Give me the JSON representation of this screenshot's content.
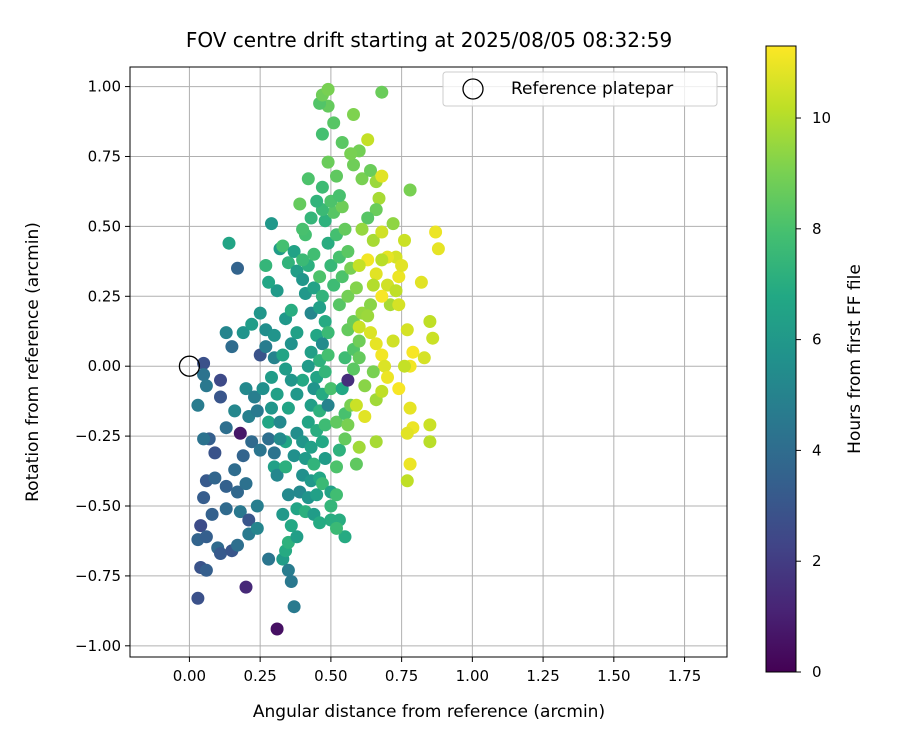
{
  "chart_data": {
    "type": "scatter",
    "title": "FOV centre drift starting at 2025/08/05 08:32:59",
    "xlabel": "Angular distance from reference (arcmin)",
    "ylabel": "Rotation from reference (arcmin)",
    "xlim": [
      -0.21,
      1.9
    ],
    "ylim": [
      -1.04,
      1.07
    ],
    "x_ticks": [
      0.0,
      0.25,
      0.5,
      0.75,
      1.0,
      1.25,
      1.5,
      1.75
    ],
    "x_tick_labels": [
      "0.00",
      "0.25",
      "0.50",
      "0.75",
      "1.00",
      "1.25",
      "1.50",
      "1.75"
    ],
    "y_ticks": [
      -1.0,
      -0.75,
      -0.5,
      -0.25,
      0.0,
      0.25,
      0.5,
      0.75,
      1.0
    ],
    "y_tick_labels": [
      "−1.00",
      "−0.75",
      "−0.50",
      "−0.25",
      "0.00",
      "0.25",
      "0.50",
      "0.75",
      "1.00"
    ],
    "grid": true,
    "legend": {
      "placement": "top-right",
      "entries": [
        "Reference platepar"
      ]
    },
    "reference": {
      "x": 0.0,
      "y": 0.0,
      "marker": "open-circle"
    },
    "colorbar": {
      "label": "Hours from first FF file",
      "colormap": "viridis",
      "range": [
        0,
        11.3
      ],
      "ticks": [
        0,
        2,
        4,
        6,
        8,
        10
      ],
      "tick_labels": [
        "0",
        "2",
        "4",
        "6",
        "8",
        "10"
      ]
    },
    "points": [
      [
        0.05,
        0.01,
        2.8
      ],
      [
        0.05,
        -0.03,
        4.3
      ],
      [
        0.06,
        -0.07,
        4.5
      ],
      [
        0.11,
        -0.05,
        2.5
      ],
      [
        0.11,
        -0.11,
        3.0
      ],
      [
        0.03,
        -0.14,
        4.7
      ],
      [
        0.16,
        -0.16,
        5.2
      ],
      [
        0.13,
        -0.22,
        4.1
      ],
      [
        0.18,
        -0.24,
        0.7
      ],
      [
        0.21,
        -0.18,
        4.9
      ],
      [
        0.24,
        -0.16,
        4.6
      ],
      [
        0.22,
        -0.27,
        3.9
      ],
      [
        0.28,
        -0.26,
        4.1
      ],
      [
        0.25,
        -0.3,
        4.4
      ],
      [
        0.19,
        -0.32,
        3.6
      ],
      [
        0.16,
        -0.37,
        4.0
      ],
      [
        0.09,
        -0.31,
        2.9
      ],
      [
        0.07,
        -0.26,
        3.4
      ],
      [
        0.05,
        -0.26,
        4.3
      ],
      [
        0.06,
        -0.41,
        3.2
      ],
      [
        0.09,
        -0.4,
        3.7
      ],
      [
        0.13,
        -0.43,
        3.5
      ],
      [
        0.17,
        -0.45,
        3.8
      ],
      [
        0.2,
        -0.42,
        4.2
      ],
      [
        0.05,
        -0.47,
        3.3
      ],
      [
        0.08,
        -0.53,
        3.5
      ],
      [
        0.13,
        -0.51,
        3.9
      ],
      [
        0.18,
        -0.52,
        4.5
      ],
      [
        0.21,
        -0.55,
        3.0
      ],
      [
        0.24,
        -0.5,
        4.8
      ],
      [
        0.04,
        -0.57,
        2.6
      ],
      [
        0.03,
        -0.62,
        3.6
      ],
      [
        0.06,
        -0.61,
        3.4
      ],
      [
        0.1,
        -0.65,
        3.9
      ],
      [
        0.11,
        -0.67,
        3.2
      ],
      [
        0.15,
        -0.66,
        3.0
      ],
      [
        0.17,
        -0.64,
        4.1
      ],
      [
        0.21,
        -0.6,
        4.6
      ],
      [
        0.24,
        -0.58,
        5.1
      ],
      [
        0.04,
        -0.72,
        2.9
      ],
      [
        0.06,
        -0.73,
        3.4
      ],
      [
        0.03,
        -0.83,
        2.8
      ],
      [
        0.2,
        -0.79,
        1.3
      ],
      [
        0.28,
        -0.69,
        4.4
      ],
      [
        0.33,
        -0.69,
        6.2
      ],
      [
        0.34,
        -0.66,
        6.9
      ],
      [
        0.35,
        -0.73,
        4.7
      ],
      [
        0.36,
        -0.77,
        4.5
      ],
      [
        0.31,
        -0.94,
        0.5
      ],
      [
        0.37,
        -0.86,
        4.6
      ],
      [
        0.14,
        0.44,
        6.6
      ],
      [
        0.17,
        0.35,
        3.6
      ],
      [
        0.13,
        0.12,
        5.1
      ],
      [
        0.15,
        0.07,
        4.0
      ],
      [
        0.19,
        0.12,
        5.8
      ],
      [
        0.22,
        0.15,
        6.2
      ],
      [
        0.25,
        0.19,
        5.9
      ],
      [
        0.27,
        0.13,
        5.5
      ],
      [
        0.3,
        0.11,
        5.8
      ],
      [
        0.25,
        0.04,
        2.9
      ],
      [
        0.27,
        0.07,
        4.7
      ],
      [
        0.3,
        0.03,
        5.0
      ],
      [
        0.2,
        -0.08,
        5.3
      ],
      [
        0.23,
        -0.11,
        4.8
      ],
      [
        0.26,
        -0.08,
        5.6
      ],
      [
        0.29,
        -0.04,
        6.2
      ],
      [
        0.29,
        -0.15,
        5.9
      ],
      [
        0.31,
        -0.1,
        6.4
      ],
      [
        0.28,
        -0.2,
        6.7
      ],
      [
        0.32,
        -0.2,
        5.3
      ],
      [
        0.3,
        -0.36,
        6.4
      ],
      [
        0.31,
        -0.39,
        5.2
      ],
      [
        0.34,
        -0.36,
        7.1
      ],
      [
        0.3,
        -0.31,
        4.3
      ],
      [
        0.34,
        -0.27,
        6.7
      ],
      [
        0.32,
        -0.26,
        5.4
      ],
      [
        0.37,
        -0.32,
        5.6
      ],
      [
        0.38,
        -0.24,
        5.5
      ],
      [
        0.35,
        -0.15,
        6.6
      ],
      [
        0.38,
        -0.1,
        6.0
      ],
      [
        0.4,
        -0.05,
        6.8
      ],
      [
        0.36,
        -0.05,
        5.9
      ],
      [
        0.34,
        -0.01,
        6.2
      ],
      [
        0.33,
        0.04,
        6.6
      ],
      [
        0.36,
        0.08,
        5.7
      ],
      [
        0.38,
        0.12,
        6.4
      ],
      [
        0.34,
        0.17,
        6.0
      ],
      [
        0.36,
        0.2,
        7.0
      ],
      [
        0.31,
        0.27,
        6.1
      ],
      [
        0.28,
        0.3,
        6.7
      ],
      [
        0.29,
        0.51,
        6.0
      ],
      [
        0.32,
        0.42,
        6.2
      ],
      [
        0.27,
        0.36,
        7.4
      ],
      [
        0.33,
        0.43,
        7.9
      ],
      [
        0.35,
        0.37,
        7.3
      ],
      [
        0.37,
        0.41,
        6.5
      ],
      [
        0.38,
        0.34,
        6.3
      ],
      [
        0.4,
        0.31,
        5.9
      ],
      [
        0.42,
        0.36,
        7.1
      ],
      [
        0.44,
        0.4,
        7.8
      ],
      [
        0.41,
        0.26,
        6.0
      ],
      [
        0.44,
        0.28,
        6.5
      ],
      [
        0.46,
        0.32,
        8.1
      ],
      [
        0.47,
        0.25,
        7.3
      ],
      [
        0.43,
        0.19,
        5.2
      ],
      [
        0.46,
        0.21,
        6.4
      ],
      [
        0.48,
        0.16,
        6.9
      ],
      [
        0.45,
        0.11,
        6.7
      ],
      [
        0.49,
        0.12,
        7.6
      ],
      [
        0.47,
        0.08,
        5.4
      ],
      [
        0.43,
        0.05,
        6.3
      ],
      [
        0.46,
        0.02,
        7.2
      ],
      [
        0.49,
        0.04,
        7.9
      ],
      [
        0.42,
        0.0,
        6.1
      ],
      [
        0.45,
        -0.04,
        6.6
      ],
      [
        0.48,
        -0.02,
        7.4
      ],
      [
        0.44,
        -0.08,
        5.8
      ],
      [
        0.47,
        -0.1,
        6.9
      ],
      [
        0.5,
        -0.08,
        8.0
      ],
      [
        0.43,
        -0.14,
        6.3
      ],
      [
        0.46,
        -0.16,
        7.2
      ],
      [
        0.49,
        -0.14,
        5.0
      ],
      [
        0.42,
        -0.2,
        6.6
      ],
      [
        0.45,
        -0.23,
        7.0
      ],
      [
        0.48,
        -0.21,
        7.7
      ],
      [
        0.4,
        -0.27,
        5.9
      ],
      [
        0.43,
        -0.29,
        6.4
      ],
      [
        0.47,
        -0.27,
        6.8
      ],
      [
        0.41,
        -0.33,
        6.1
      ],
      [
        0.44,
        -0.35,
        7.3
      ],
      [
        0.48,
        -0.33,
        6.2
      ],
      [
        0.4,
        -0.39,
        5.6
      ],
      [
        0.43,
        -0.41,
        6.0
      ],
      [
        0.46,
        -0.4,
        6.7
      ],
      [
        0.39,
        -0.45,
        5.3
      ],
      [
        0.42,
        -0.47,
        5.8
      ],
      [
        0.45,
        -0.46,
        6.4
      ],
      [
        0.38,
        -0.51,
        6.6
      ],
      [
        0.41,
        -0.52,
        7.1
      ],
      [
        0.44,
        -0.53,
        6.2
      ],
      [
        0.5,
        -0.5,
        7.4
      ],
      [
        0.53,
        -0.55,
        7.0
      ],
      [
        0.55,
        -0.61,
        6.9
      ],
      [
        0.47,
        -0.42,
        7.6
      ],
      [
        0.5,
        -0.45,
        6.5
      ],
      [
        0.52,
        -0.36,
        8.1
      ],
      [
        0.53,
        -0.3,
        7.2
      ],
      [
        0.55,
        -0.26,
        8.6
      ],
      [
        0.52,
        -0.2,
        8.5
      ],
      [
        0.55,
        -0.17,
        8.0
      ],
      [
        0.57,
        -0.14,
        9.0
      ],
      [
        0.54,
        -0.08,
        6.8
      ],
      [
        0.56,
        -0.05,
        1.5
      ],
      [
        0.58,
        -0.01,
        8.4
      ],
      [
        0.55,
        0.03,
        7.7
      ],
      [
        0.58,
        0.06,
        8.2
      ],
      [
        0.6,
        0.09,
        8.8
      ],
      [
        0.56,
        0.13,
        8.6
      ],
      [
        0.58,
        0.16,
        8.7
      ],
      [
        0.61,
        0.19,
        9.5
      ],
      [
        0.53,
        0.22,
        8.3
      ],
      [
        0.56,
        0.25,
        8.9
      ],
      [
        0.59,
        0.28,
        9.2
      ],
      [
        0.51,
        0.29,
        7.7
      ],
      [
        0.54,
        0.32,
        8.1
      ],
      [
        0.57,
        0.35,
        9.0
      ],
      [
        0.5,
        0.36,
        7.5
      ],
      [
        0.53,
        0.39,
        8.0
      ],
      [
        0.56,
        0.41,
        8.4
      ],
      [
        0.49,
        0.44,
        7.0
      ],
      [
        0.52,
        0.47,
        7.9
      ],
      [
        0.55,
        0.49,
        8.6
      ],
      [
        0.48,
        0.52,
        7.2
      ],
      [
        0.51,
        0.55,
        8.3
      ],
      [
        0.54,
        0.57,
        8.8
      ],
      [
        0.47,
        0.56,
        7.6
      ],
      [
        0.5,
        0.59,
        8.1
      ],
      [
        0.53,
        0.61,
        8.0
      ],
      [
        0.45,
        0.59,
        7.3
      ],
      [
        0.47,
        0.64,
        7.7
      ],
      [
        0.52,
        0.68,
        8.5
      ],
      [
        0.49,
        0.73,
        8.7
      ],
      [
        0.58,
        0.72,
        8.8
      ],
      [
        0.6,
        0.77,
        8.9
      ],
      [
        0.63,
        0.81,
        10.3
      ],
      [
        0.57,
        0.76,
        9.0
      ],
      [
        0.54,
        0.8,
        8.4
      ],
      [
        0.51,
        0.87,
        8.3
      ],
      [
        0.49,
        0.93,
        8.6
      ],
      [
        0.46,
        0.94,
        8.2
      ],
      [
        0.47,
        0.97,
        8.8
      ],
      [
        0.49,
        0.99,
        9.0
      ],
      [
        0.47,
        0.83,
        7.9
      ],
      [
        0.58,
        0.9,
        9.1
      ],
      [
        0.68,
        0.98,
        8.7
      ],
      [
        0.42,
        0.67,
        8.1
      ],
      [
        0.43,
        0.53,
        7.4
      ],
      [
        0.41,
        0.47,
        7.9
      ],
      [
        0.4,
        0.38,
        7.6
      ],
      [
        0.39,
        0.58,
        8.6
      ],
      [
        0.4,
        0.49,
        8.0
      ],
      [
        0.61,
        0.67,
        9.0
      ],
      [
        0.64,
        0.7,
        8.7
      ],
      [
        0.66,
        0.66,
        9.6
      ],
      [
        0.67,
        0.6,
        9.8
      ],
      [
        0.68,
        0.68,
        10.8
      ],
      [
        0.66,
        0.56,
        8.7
      ],
      [
        0.63,
        0.53,
        8.3
      ],
      [
        0.61,
        0.49,
        9.5
      ],
      [
        0.65,
        0.45,
        9.8
      ],
      [
        0.68,
        0.48,
        10.5
      ],
      [
        0.72,
        0.51,
        9.4
      ],
      [
        0.76,
        0.45,
        10.4
      ],
      [
        0.78,
        0.63,
        9.0
      ],
      [
        0.73,
        0.39,
        10.6
      ],
      [
        0.7,
        0.39,
        10.9
      ],
      [
        0.68,
        0.38,
        10.1
      ],
      [
        0.63,
        0.38,
        11.1
      ],
      [
        0.6,
        0.36,
        10.3
      ],
      [
        0.66,
        0.33,
        10.8
      ],
      [
        0.7,
        0.29,
        10.5
      ],
      [
        0.74,
        0.32,
        11.0
      ],
      [
        0.75,
        0.36,
        10.8
      ],
      [
        0.73,
        0.27,
        10.2
      ],
      [
        0.71,
        0.22,
        9.8
      ],
      [
        0.74,
        0.22,
        10.6
      ],
      [
        0.68,
        0.25,
        11.2
      ],
      [
        0.65,
        0.29,
        10.0
      ],
      [
        0.64,
        0.22,
        9.3
      ],
      [
        0.63,
        0.18,
        9.6
      ],
      [
        0.6,
        0.14,
        10.4
      ],
      [
        0.64,
        0.12,
        10.7
      ],
      [
        0.66,
        0.08,
        10.9
      ],
      [
        0.68,
        0.04,
        11.1
      ],
      [
        0.69,
        0.0,
        10.7
      ],
      [
        0.7,
        -0.04,
        11.0
      ],
      [
        0.72,
        0.09,
        10.5
      ],
      [
        0.77,
        0.13,
        10.6
      ],
      [
        0.79,
        0.05,
        11.2
      ],
      [
        0.83,
        0.03,
        10.6
      ],
      [
        0.85,
        0.16,
        10.2
      ],
      [
        0.86,
        0.1,
        10.4
      ],
      [
        0.87,
        0.48,
        11.0
      ],
      [
        0.88,
        0.42,
        10.9
      ],
      [
        0.82,
        0.3,
        10.8
      ],
      [
        0.78,
        0.0,
        11.1
      ],
      [
        0.76,
        0.0,
        10.3
      ],
      [
        0.74,
        -0.08,
        11.2
      ],
      [
        0.78,
        -0.15,
        10.9
      ],
      [
        0.79,
        -0.22,
        11.0
      ],
      [
        0.77,
        -0.24,
        10.8
      ],
      [
        0.85,
        -0.21,
        10.4
      ],
      [
        0.85,
        -0.27,
        10.1
      ],
      [
        0.78,
        -0.35,
        11.0
      ],
      [
        0.77,
        -0.41,
        10.2
      ],
      [
        0.66,
        -0.27,
        9.8
      ],
      [
        0.6,
        -0.29,
        9.7
      ],
      [
        0.62,
        -0.18,
        10.8
      ],
      [
        0.59,
        -0.14,
        10.4
      ],
      [
        0.56,
        -0.21,
        9.0
      ],
      [
        0.66,
        -0.12,
        9.7
      ],
      [
        0.68,
        -0.09,
        10.2
      ],
      [
        0.62,
        -0.07,
        9.3
      ],
      [
        0.65,
        -0.02,
        9.0
      ],
      [
        0.6,
        0.03,
        8.6
      ],
      [
        0.52,
        -0.46,
        7.8
      ],
      [
        0.59,
        -0.35,
        8.5
      ],
      [
        0.5,
        -0.55,
        7.0
      ],
      [
        0.52,
        -0.58,
        7.6
      ],
      [
        0.46,
        -0.56,
        6.9
      ],
      [
        0.35,
        -0.46,
        5.3
      ],
      [
        0.33,
        -0.53,
        6.0
      ],
      [
        0.36,
        -0.57,
        6.8
      ],
      [
        0.35,
        -0.63,
        7.2
      ],
      [
        0.38,
        -0.61,
        6.3
      ]
    ]
  }
}
